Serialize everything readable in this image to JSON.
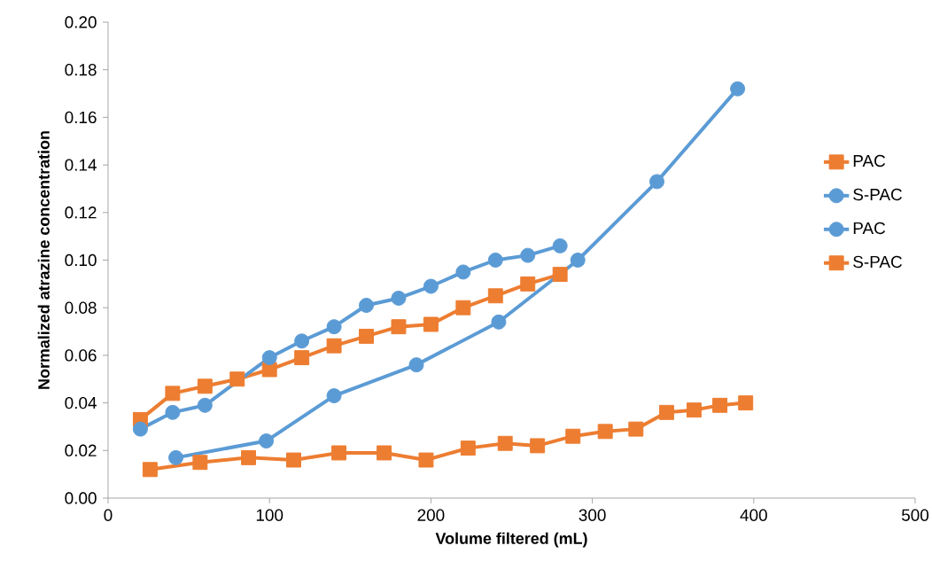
{
  "chart_data": {
    "type": "line",
    "xlabel": "Volume filtered (mL)",
    "ylabel": "Normalized atrazine concentration",
    "xlim": [
      0,
      500
    ],
    "xticks": [
      0,
      100,
      200,
      300,
      400,
      500
    ],
    "ylim": [
      0,
      0.2
    ],
    "yticks": [
      {
        "value": 0,
        "label": "0.00"
      },
      {
        "value": 0.02,
        "label": "0.02"
      },
      {
        "value": 0.04,
        "label": "0.04"
      },
      {
        "value": 0.06,
        "label": "0.06"
      },
      {
        "value": 0.08,
        "label": "0.08"
      },
      {
        "value": 0.1,
        "label": "0.10"
      },
      {
        "value": 0.12,
        "label": "0.12"
      },
      {
        "value": 0.14,
        "label": "0.14"
      },
      {
        "value": 0.16,
        "label": "0.16"
      },
      {
        "value": 0.18,
        "label": "0.18"
      },
      {
        "value": 0.2,
        "label": "0.20"
      }
    ],
    "grid": false,
    "legend": "right",
    "line_style": "solid",
    "series": [
      {
        "name": "PAC",
        "color": "#ed7d31",
        "marker": "square",
        "x": [
          20,
          40,
          60,
          80,
          100,
          120,
          140,
          160,
          180,
          200,
          220,
          240,
          260,
          280
        ],
        "values": [
          0.033,
          0.044,
          0.047,
          0.05,
          0.054,
          0.059,
          0.064,
          0.068,
          0.072,
          0.073,
          0.08,
          0.085,
          0.09,
          0.094
        ]
      },
      {
        "name": "S-PAC",
        "color": "#5b9bd5",
        "marker": "circle",
        "x": [
          20,
          40,
          60,
          100,
          120,
          140,
          160,
          180,
          200,
          220,
          240,
          260,
          280
        ],
        "values": [
          0.029,
          0.036,
          0.039,
          0.059,
          0.066,
          0.072,
          0.081,
          0.084,
          0.089,
          0.095,
          0.1,
          0.102,
          0.106
        ]
      },
      {
        "name": "PAC",
        "color": "#5b9bd5",
        "marker": "circle",
        "x": [
          42,
          98,
          140,
          191,
          242,
          291,
          340,
          390
        ],
        "values": [
          0.017,
          0.024,
          0.043,
          0.056,
          0.074,
          0.1,
          0.133,
          0.172
        ]
      },
      {
        "name": "S-PAC",
        "color": "#ed7d31",
        "marker": "square",
        "x": [
          26,
          57,
          87,
          115,
          143,
          171,
          197,
          223,
          246,
          266,
          288,
          308,
          327,
          346,
          363,
          379,
          395
        ],
        "values": [
          0.012,
          0.015,
          0.017,
          0.016,
          0.019,
          0.019,
          0.016,
          0.021,
          0.023,
          0.022,
          0.026,
          0.028,
          0.029,
          0.036,
          0.037,
          0.039,
          0.04
        ]
      }
    ]
  }
}
